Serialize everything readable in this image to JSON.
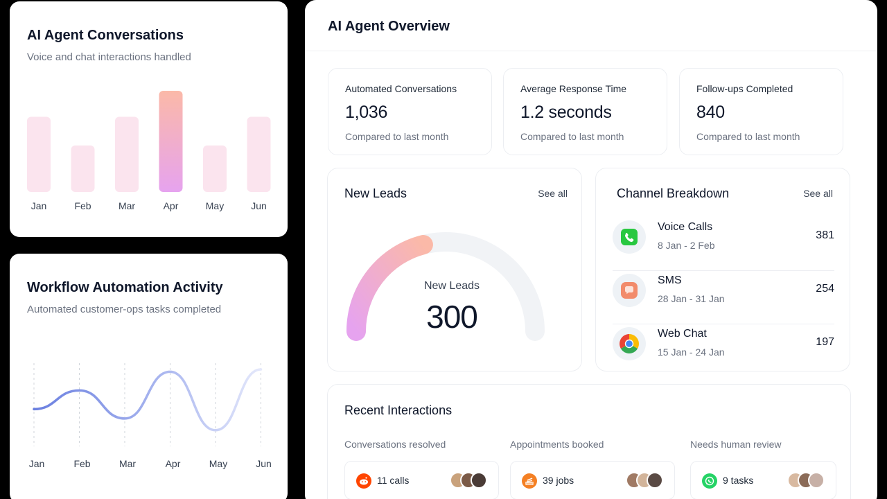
{
  "conversations_card": {
    "title": "AI Agent Conversations",
    "subtitle": "Voice and chat interactions handled"
  },
  "workflow_card": {
    "title": "Workflow Automation Activity",
    "subtitle": "Automated customer-ops tasks completed"
  },
  "chart_data": [
    {
      "type": "bar",
      "categories": [
        "Jan",
        "Feb",
        "Mar",
        "Apr",
        "May",
        "Jun"
      ],
      "values": [
        110,
        68,
        110,
        148,
        68,
        110
      ],
      "highlight_category": "Apr",
      "ylim": [
        0,
        150
      ],
      "grid": false,
      "title": "AI Agent Conversations",
      "subtitle": "Voice and chat interactions handled",
      "colors": {
        "bar": "#fbe4ee",
        "highlight_top": "#fbb9a8",
        "highlight_bottom": "#e6a3ef"
      }
    },
    {
      "type": "line",
      "categories": [
        "Jan",
        "Feb",
        "Mar",
        "Apr",
        "May",
        "Jun"
      ],
      "values": [
        30,
        46,
        22,
        62,
        12,
        64
      ],
      "ylim": [
        0,
        80
      ],
      "grid": false,
      "title": "Workflow Automation Activity",
      "subtitle": "Automated customer-ops tasks completed",
      "colors": {
        "line_start": "#6a7fe0",
        "line_end": "#e4e8fb",
        "guides": "#d1d5db"
      }
    }
  ],
  "overview": {
    "title": "AI Agent Overview",
    "stats": [
      {
        "label": "Automated Conversations",
        "value": "1,036",
        "comparison": "Compared to last month"
      },
      {
        "label": "Average Response Time",
        "value": "1.2 seconds",
        "comparison": "Compared to last month"
      },
      {
        "label": "Follow-ups Completed",
        "value": "840",
        "comparison": "Compared to last month"
      }
    ],
    "new_leads": {
      "title": "New Leads",
      "see_all": "See all",
      "gauge_label": "New Leads",
      "value": "300",
      "progress_fraction": 0.42,
      "colors": {
        "track": "#f1f3f6",
        "start": "#e6a3ef",
        "end": "#fbb9a8"
      }
    },
    "channel_breakdown": {
      "title": "Channel Breakdown",
      "see_all": "See all",
      "channels": [
        {
          "name": "Voice Calls",
          "range": "8 Jan - 2 Feb",
          "count": "381",
          "icon": "phone-icon",
          "color": "#28c840"
        },
        {
          "name": "SMS",
          "range": "28 Jan - 31 Jan",
          "count": "254",
          "icon": "message-icon",
          "color": "#f28b6b"
        },
        {
          "name": "Web Chat",
          "range": "15 Jan - 24 Jan",
          "count": "197",
          "icon": "chrome-icon",
          "color": "#4285f4"
        }
      ]
    },
    "recent_interactions": {
      "title": "Recent Interactions",
      "columns": [
        {
          "label": "Conversations resolved",
          "value": "11 calls",
          "icon": "reddit-icon",
          "color": "#ff4500"
        },
        {
          "label": "Appointments booked",
          "value": "39 jobs",
          "icon": "stack-icon",
          "color": "#f48024"
        },
        {
          "label": "Needs human review",
          "value": "9 tasks",
          "icon": "whatsapp-icon",
          "color": "#25d366"
        }
      ]
    }
  }
}
